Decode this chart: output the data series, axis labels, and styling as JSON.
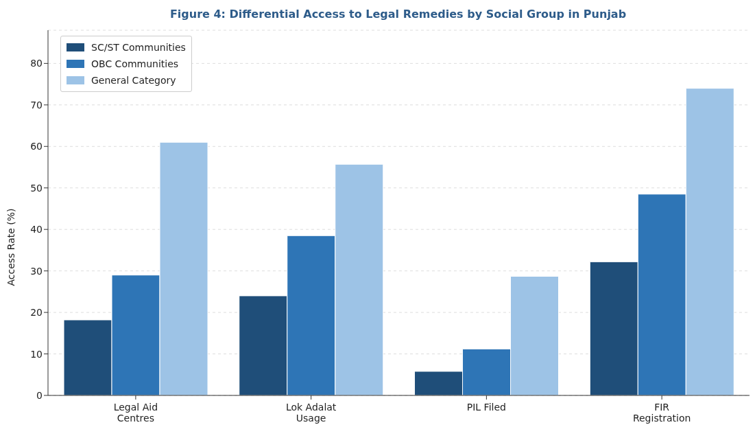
{
  "chart_data": {
    "type": "bar",
    "title": "Figure 4: Differential Access to Legal Remedies by Social Group in Punjab",
    "ylabel": "Access Rate (%)",
    "categories": [
      "Legal Aid\nCentres",
      "Lok Adalat\nUsage",
      "PIL Filed",
      "FIR\nRegistration"
    ],
    "series": [
      {
        "name": "SC/ST Communities",
        "color": "#1f4e79",
        "values": [
          18.2,
          24,
          5.8,
          32.2
        ]
      },
      {
        "name": "OBC Communities",
        "color": "#2e75b6",
        "values": [
          29,
          38.5,
          11.2,
          48.5
        ]
      },
      {
        "name": "General Category",
        "color": "#9dc3e6",
        "values": [
          61,
          55.7,
          28.7,
          74
        ]
      }
    ],
    "ylim": [
      0,
      88
    ],
    "yticks": [
      0,
      10,
      20,
      30,
      40,
      50,
      60,
      70,
      80
    ],
    "grid": "y",
    "legend": "top left"
  }
}
